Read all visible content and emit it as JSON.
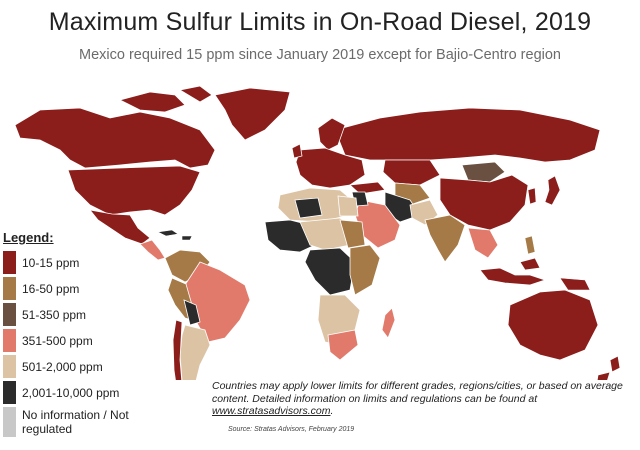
{
  "title": "Maximum Sulfur Limits in On-Road Diesel, 2019",
  "subtitle": "Mexico required 15 ppm since January 2019 except for Bajio-Centro region",
  "legend": {
    "title": "Legend:",
    "items": [
      {
        "label": "10-15 ppm",
        "color": "#8b1d1a"
      },
      {
        "label": "16-50 ppm",
        "color": "#a57a47"
      },
      {
        "label": "51-350 ppm",
        "color": "#6a5040"
      },
      {
        "label": "351-500 ppm",
        "color": "#e27a6b"
      },
      {
        "label": "501-2,000 ppm",
        "color": "#dcc3a4"
      },
      {
        "label": "2,001-10,000 ppm",
        "color": "#2b2b2b"
      },
      {
        "label": "No information / Not regulated",
        "color": "#c8c8c8"
      }
    ]
  },
  "note": {
    "text": "Countries may apply lower limits for different grades, regions/cities, or based on average content. Detailed information on limits and regulations can be found at ",
    "link": "www.stratasadvisors.com",
    "end": "."
  },
  "source": "Source: Stratas Advisors, February 2019"
}
